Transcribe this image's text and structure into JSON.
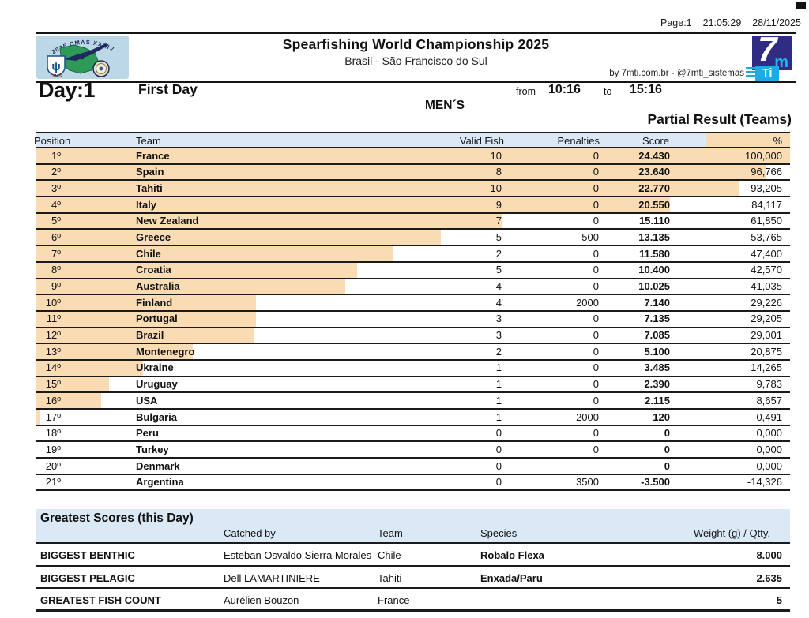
{
  "page_meta": {
    "page": "Page:1",
    "time": "21:05:29",
    "date": "28/11/2025"
  },
  "header": {
    "title": "Spearfishing World Championship 2025",
    "subtitle": "Brasil - São Francisco do Sul",
    "byline": "by 7mti.com.br  -  @7mti_sistemas"
  },
  "logos": {
    "left_arc_text": "2025 CMAS XXXIV",
    "cmas_label": "CMAS",
    "seven": "7",
    "m": "m",
    "ti": "Ti"
  },
  "day_bar": {
    "day_label": "Day:1",
    "day_name": "First Day",
    "from_label": "from",
    "from_time": "10:16",
    "to_label": "to",
    "to_time": "15:16",
    "category": "MEN´S",
    "result_title": "Partial Result (Teams)"
  },
  "results_table": {
    "columns": [
      "Position",
      "Team",
      "Valid Fish",
      "Penalties",
      "Score",
      "%"
    ],
    "rows": [
      {
        "position": "1º",
        "team": "France",
        "valid_fish": "10",
        "penalties": "0",
        "score": "24.430",
        "pct": "100,000"
      },
      {
        "position": "2º",
        "team": "Spain",
        "valid_fish": "8",
        "penalties": "0",
        "score": "23.640",
        "pct": "96,766"
      },
      {
        "position": "3º",
        "team": "Tahiti",
        "valid_fish": "10",
        "penalties": "0",
        "score": "22.770",
        "pct": "93,205"
      },
      {
        "position": "4º",
        "team": "Italy",
        "valid_fish": "9",
        "penalties": "0",
        "score": "20.550",
        "pct": "84,117"
      },
      {
        "position": "5º",
        "team": "New Zealand",
        "valid_fish": "7",
        "penalties": "0",
        "score": "15.110",
        "pct": "61,850"
      },
      {
        "position": "6º",
        "team": "Greece",
        "valid_fish": "5",
        "penalties": "500",
        "score": "13.135",
        "pct": "53,765"
      },
      {
        "position": "7º",
        "team": "Chile",
        "valid_fish": "2",
        "penalties": "0",
        "score": "11.580",
        "pct": "47,400"
      },
      {
        "position": "8º",
        "team": "Croatia",
        "valid_fish": "5",
        "penalties": "0",
        "score": "10.400",
        "pct": "42,570"
      },
      {
        "position": "9º",
        "team": "Australia",
        "valid_fish": "4",
        "penalties": "0",
        "score": "10.025",
        "pct": "41,035"
      },
      {
        "position": "10º",
        "team": "Finland",
        "valid_fish": "4",
        "penalties": "2000",
        "score": "7.140",
        "pct": "29,226"
      },
      {
        "position": "11º",
        "team": "Portugal",
        "valid_fish": "3",
        "penalties": "0",
        "score": "7.135",
        "pct": "29,205"
      },
      {
        "position": "12º",
        "team": "Brazil",
        "valid_fish": "3",
        "penalties": "0",
        "score": "7.085",
        "pct": "29,001"
      },
      {
        "position": "13º",
        "team": "Montenegro",
        "valid_fish": "2",
        "penalties": "0",
        "score": "5.100",
        "pct": "20,875"
      },
      {
        "position": "14º",
        "team": "Ukraine",
        "valid_fish": "1",
        "penalties": "0",
        "score": "3.485",
        "pct": "14,265"
      },
      {
        "position": "15º",
        "team": "Uruguay",
        "valid_fish": "1",
        "penalties": "0",
        "score": "2.390",
        "pct": "9,783"
      },
      {
        "position": "16º",
        "team": "USA",
        "valid_fish": "1",
        "penalties": "0",
        "score": "2.115",
        "pct": "8,657"
      },
      {
        "position": "17º",
        "team": "Bulgaria",
        "valid_fish": "1",
        "penalties": "2000",
        "score": "120",
        "pct": "0,491"
      },
      {
        "position": "18º",
        "team": "Peru",
        "valid_fish": "0",
        "penalties": "0",
        "score": "0",
        "pct": "0,000"
      },
      {
        "position": "19º",
        "team": "Turkey",
        "valid_fish": "0",
        "penalties": "0",
        "score": "0",
        "pct": "0,000"
      },
      {
        "position": "20º",
        "team": "Denmark",
        "valid_fish": "0",
        "penalties": "",
        "score": "0",
        "pct": "0,000"
      },
      {
        "position": "21º",
        "team": "Argentina",
        "valid_fish": "0",
        "penalties": "3500",
        "score": "-3.500",
        "pct": "-14,326"
      }
    ]
  },
  "greatest_scores": {
    "title": "Greatest Scores (this Day)",
    "columns": [
      "Catched by",
      "Team",
      "Species",
      "Weight (g) / Qtty."
    ],
    "rows": [
      {
        "label": "BIGGEST BENTHIC",
        "catched_by": "Esteban Osvaldo Sierra Morales",
        "team": "Chile",
        "species": "Robalo Flexa",
        "weight": "8.000"
      },
      {
        "label": "BIGGEST PELAGIC",
        "catched_by": "Dell LAMARTINIERE",
        "team": "Tahiti",
        "species": "Enxada/Paru",
        "weight": "2.635"
      },
      {
        "label": "GREATEST FISH COUNT",
        "catched_by": "Aurélien Bouzon",
        "team": "France",
        "species": "",
        "weight": "5"
      }
    ]
  },
  "colors": {
    "band_blue": "#dbe9f6",
    "bar_orange": "#fadcb4",
    "logo_indigo": "#312c83",
    "logo_cyan": "#19ade4",
    "logo_bg_blue": "#bcd7e6",
    "logo_map_green": "#2e9a57"
  }
}
